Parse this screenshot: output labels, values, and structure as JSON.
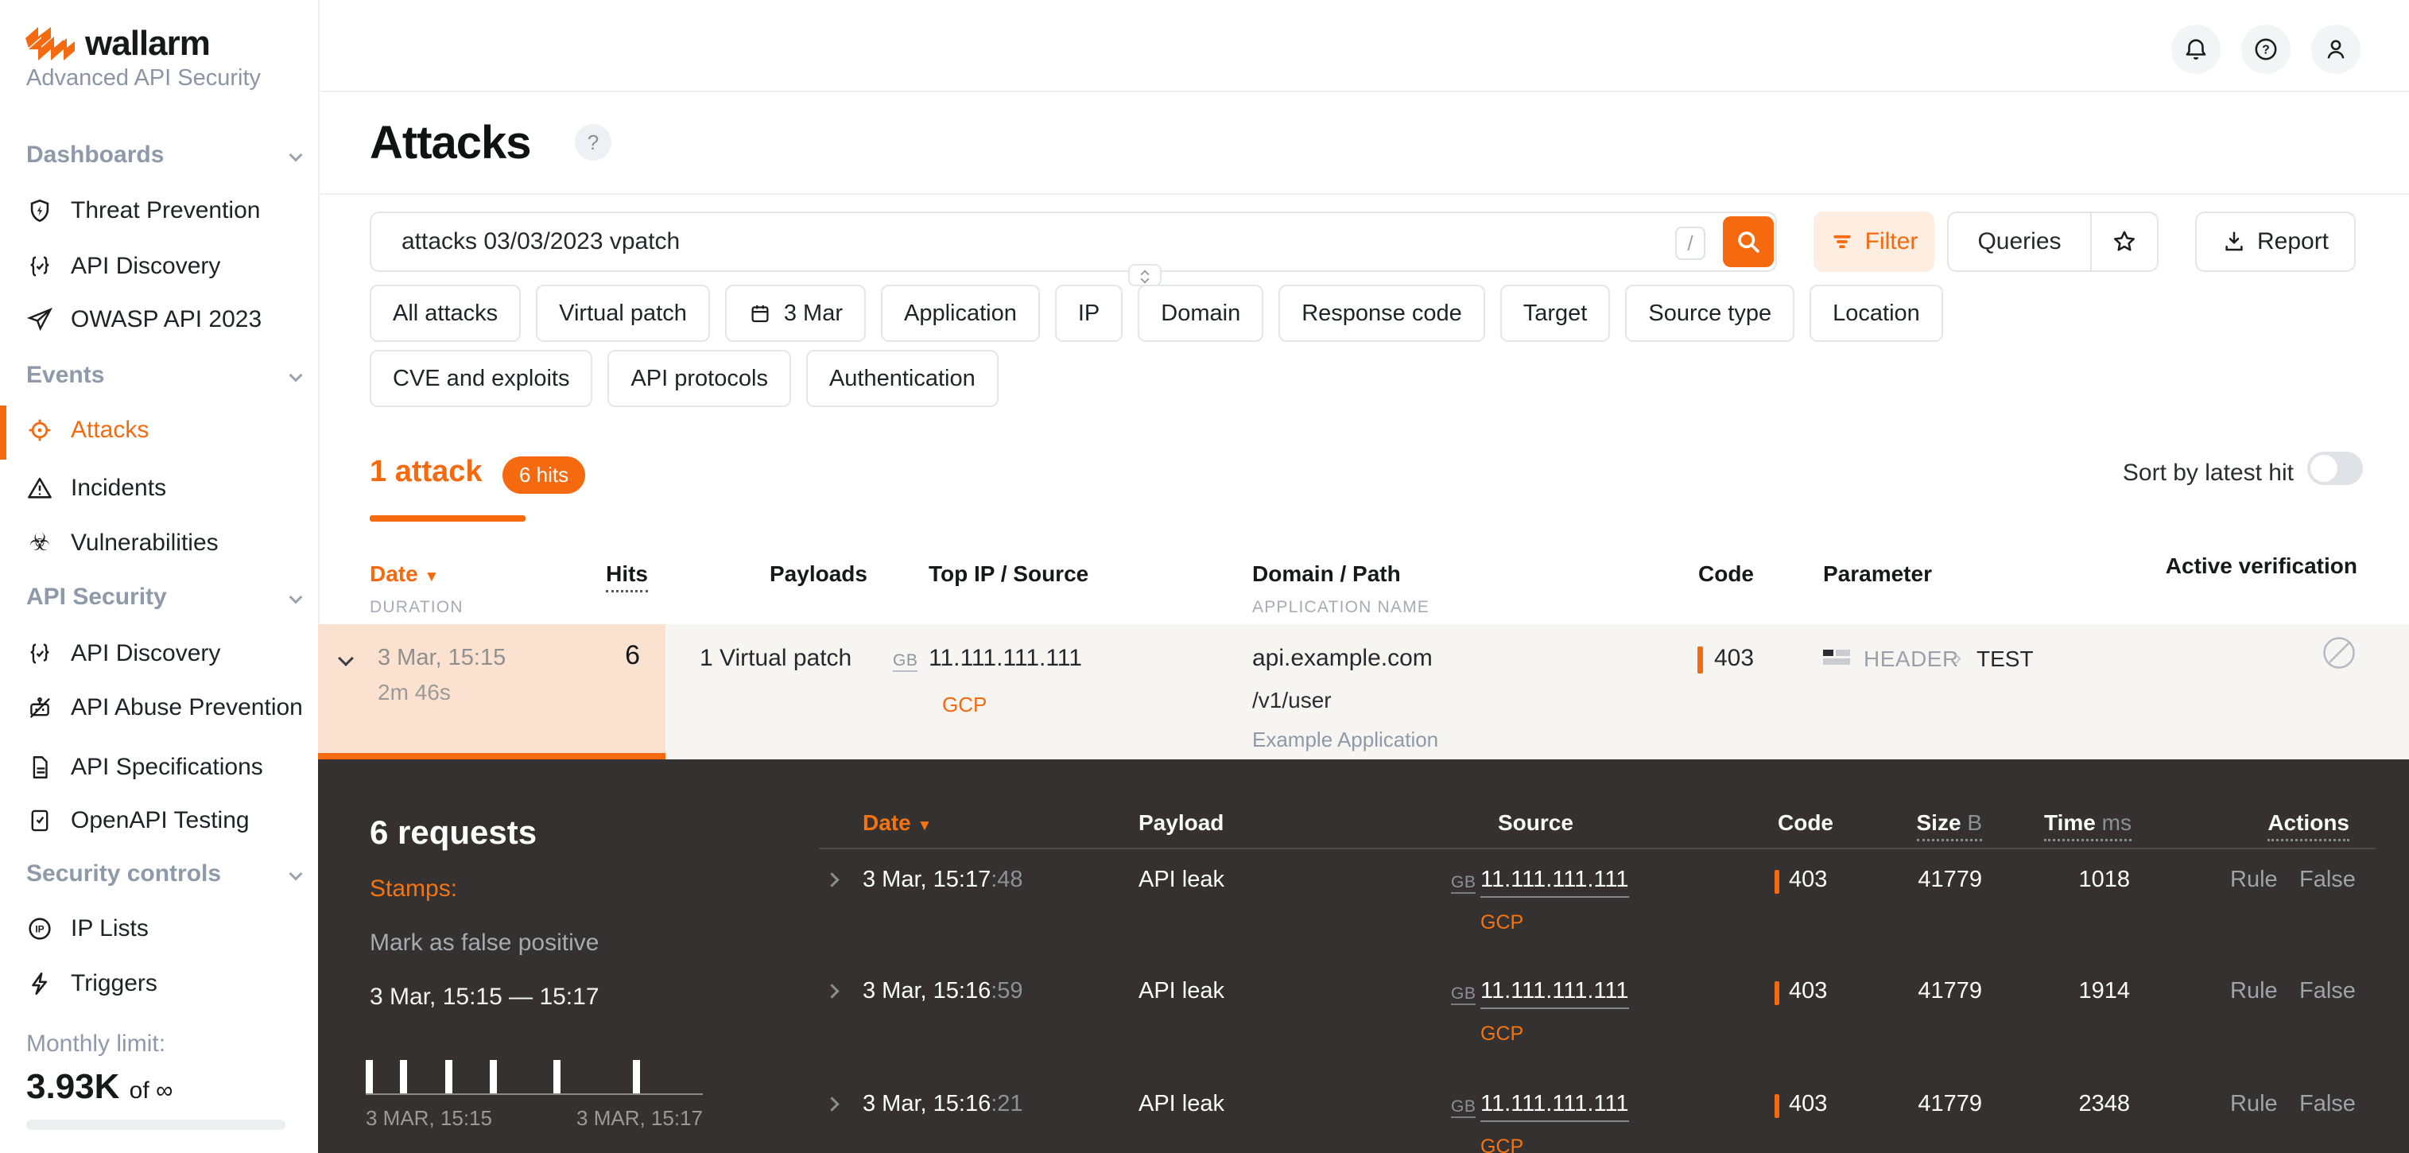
{
  "brand": {
    "name": "wallarm",
    "subtitle": "Advanced API Security"
  },
  "sidebar": {
    "sections": [
      {
        "label": "Dashboards",
        "items": [
          {
            "icon": "shield-bolt-icon",
            "label": "Threat Prevention"
          },
          {
            "icon": "braces-check-icon",
            "label": "API Discovery"
          },
          {
            "icon": "paper-plane-icon",
            "label": "OWASP API 2023"
          }
        ]
      },
      {
        "label": "Events",
        "items": [
          {
            "icon": "target-icon",
            "label": "Attacks",
            "active": true
          },
          {
            "icon": "warning-triangle-icon",
            "label": "Incidents"
          },
          {
            "icon": "biohazard-icon",
            "label": "Vulnerabilities"
          }
        ]
      },
      {
        "label": "API Security",
        "items": [
          {
            "icon": "braces-check-icon",
            "label": "API Discovery"
          },
          {
            "icon": "robot-off-icon",
            "label": "API Abuse Prevention"
          },
          {
            "icon": "document-icon",
            "label": "API Specifications"
          },
          {
            "icon": "book-check-icon",
            "label": "OpenAPI Testing"
          }
        ]
      },
      {
        "label": "Security controls",
        "items": [
          {
            "icon": "ip-circle-icon",
            "label": "IP Lists"
          },
          {
            "icon": "lightning-icon",
            "label": "Triggers"
          }
        ]
      }
    ],
    "monthly_limit": {
      "label": "Monthly limit:",
      "value": "3.93K",
      "suffix": "of ∞"
    }
  },
  "header": {
    "title": "Attacks",
    "help": "?"
  },
  "search": {
    "value": "attacks 03/03/2023 vpatch",
    "shortcut_hint": "/"
  },
  "toolbar": {
    "filter": "Filter",
    "queries": "Queries",
    "report": "Report"
  },
  "filters": {
    "row1": [
      "All attacks",
      "Virtual patch",
      "3 Mar",
      "Application",
      "IP",
      "Domain",
      "Response code",
      "Target",
      "Source type",
      "Location"
    ],
    "row2": [
      "CVE and exploits",
      "API protocols",
      "Authentication"
    ]
  },
  "summary": {
    "attacks": "1 attack",
    "hits": "6 hits",
    "sort": "Sort by latest hit",
    "sort_glyph": "▼"
  },
  "attacks_table": {
    "headers": {
      "date": "Date",
      "duration": "DURATION",
      "hits": "Hits",
      "payloads": "Payloads",
      "top_ip": "Top IP / Source",
      "domain": "Domain / Path",
      "app": "APPLICATION NAME",
      "code": "Code",
      "parameter": "Parameter",
      "verification": "Active verification"
    },
    "row": {
      "date": "3 Mar, 15:15",
      "duration": "2m 46s",
      "hits": "6",
      "payloads": "1 Virtual patch",
      "country": "GB",
      "ip": "11.111.111.111",
      "source": "GCP",
      "domain": "api.example.com",
      "path": "/v1/user",
      "app": "Example Application",
      "code": "403",
      "param_kind": "HEADER",
      "param_sep": "›",
      "param_name": "TEST"
    }
  },
  "requests_panel": {
    "title": "6 requests",
    "stamps": "Stamps:",
    "false_positive": "Mark as false positive",
    "range": "3 Mar, 15:15 — 15:17",
    "chart": {
      "type": "bar",
      "bars": [
        0,
        0.107,
        0.246,
        0.384,
        0.581,
        0.827
      ],
      "start_label": "3 MAR, 15:15",
      "end_label": "3 MAR, 15:17"
    },
    "headers": {
      "date": "Date",
      "payload": "Payload",
      "source": "Source",
      "code": "Code",
      "size": "Size",
      "size_unit": "B",
      "time": "Time",
      "time_unit": "ms",
      "actions": "Actions"
    },
    "rows": [
      {
        "date": "3 Mar, 15:17",
        "sec": ":48",
        "payload": "API leak",
        "country": "GB",
        "ip": "11.111.111.111",
        "source": "GCP",
        "code": "403",
        "size": "41779",
        "time": "1018",
        "rule": "Rule",
        "fp": "False"
      },
      {
        "date": "3 Mar, 15:16",
        "sec": ":59",
        "payload": "API leak",
        "country": "GB",
        "ip": "11.111.111.111",
        "source": "GCP",
        "code": "403",
        "size": "41779",
        "time": "1914",
        "rule": "Rule",
        "fp": "False"
      },
      {
        "date": "3 Mar, 15:16",
        "sec": ":21",
        "payload": "API leak",
        "country": "GB",
        "ip": "11.111.111.111",
        "source": "GCP",
        "code": "403",
        "size": "41779",
        "time": "2348",
        "rule": "Rule",
        "fp": "False"
      }
    ]
  },
  "colors": {
    "accent": "#f5690f",
    "dark_bg": "#343130",
    "highlight": "#fbe2d0"
  }
}
